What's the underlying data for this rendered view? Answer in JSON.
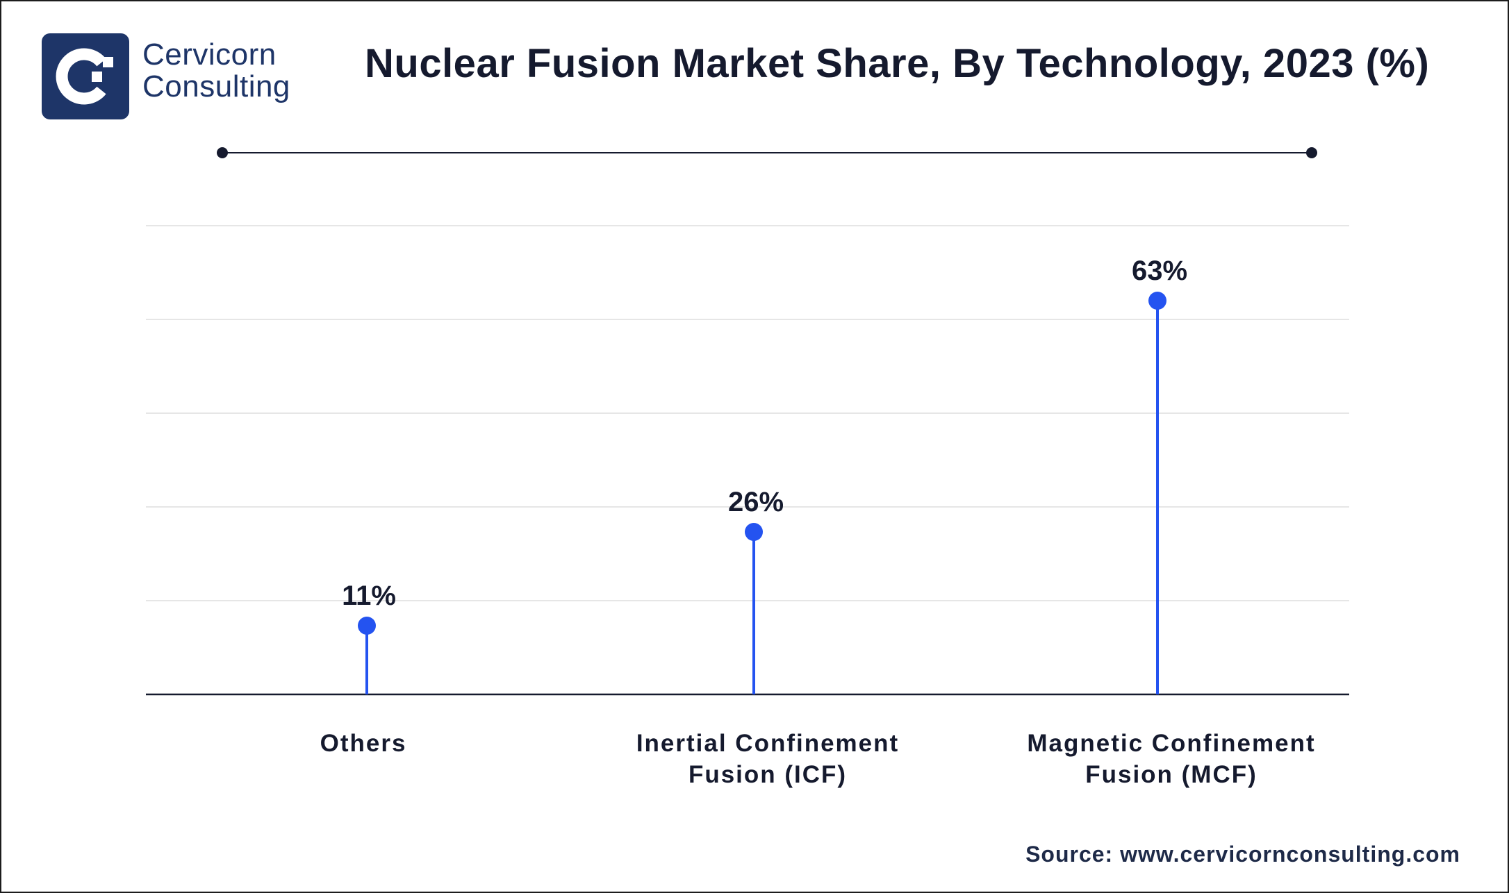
{
  "brand": {
    "line1": "Cervicorn",
    "line2": "Consulting"
  },
  "source_text": "Source: www.cervicornconsulting.com",
  "colors": {
    "accent": "#2453f0",
    "text": "#151a2e",
    "brand": "#1e3568",
    "grid": "#e6e6e6"
  },
  "chart_data": {
    "type": "lollipop",
    "title": "Nuclear Fusion Market Share, By Technology, 2023 (%)",
    "categories": [
      [
        "Others"
      ],
      [
        "Inertial Confinement",
        "Fusion (ICF)"
      ],
      [
        "Magnetic Confinement",
        "Fusion (MCF)"
      ]
    ],
    "values": [
      11,
      26,
      63
    ],
    "value_labels": [
      "11%",
      "26%",
      "63%"
    ],
    "ylim": [
      0,
      75
    ],
    "grid": true,
    "legend": false
  }
}
